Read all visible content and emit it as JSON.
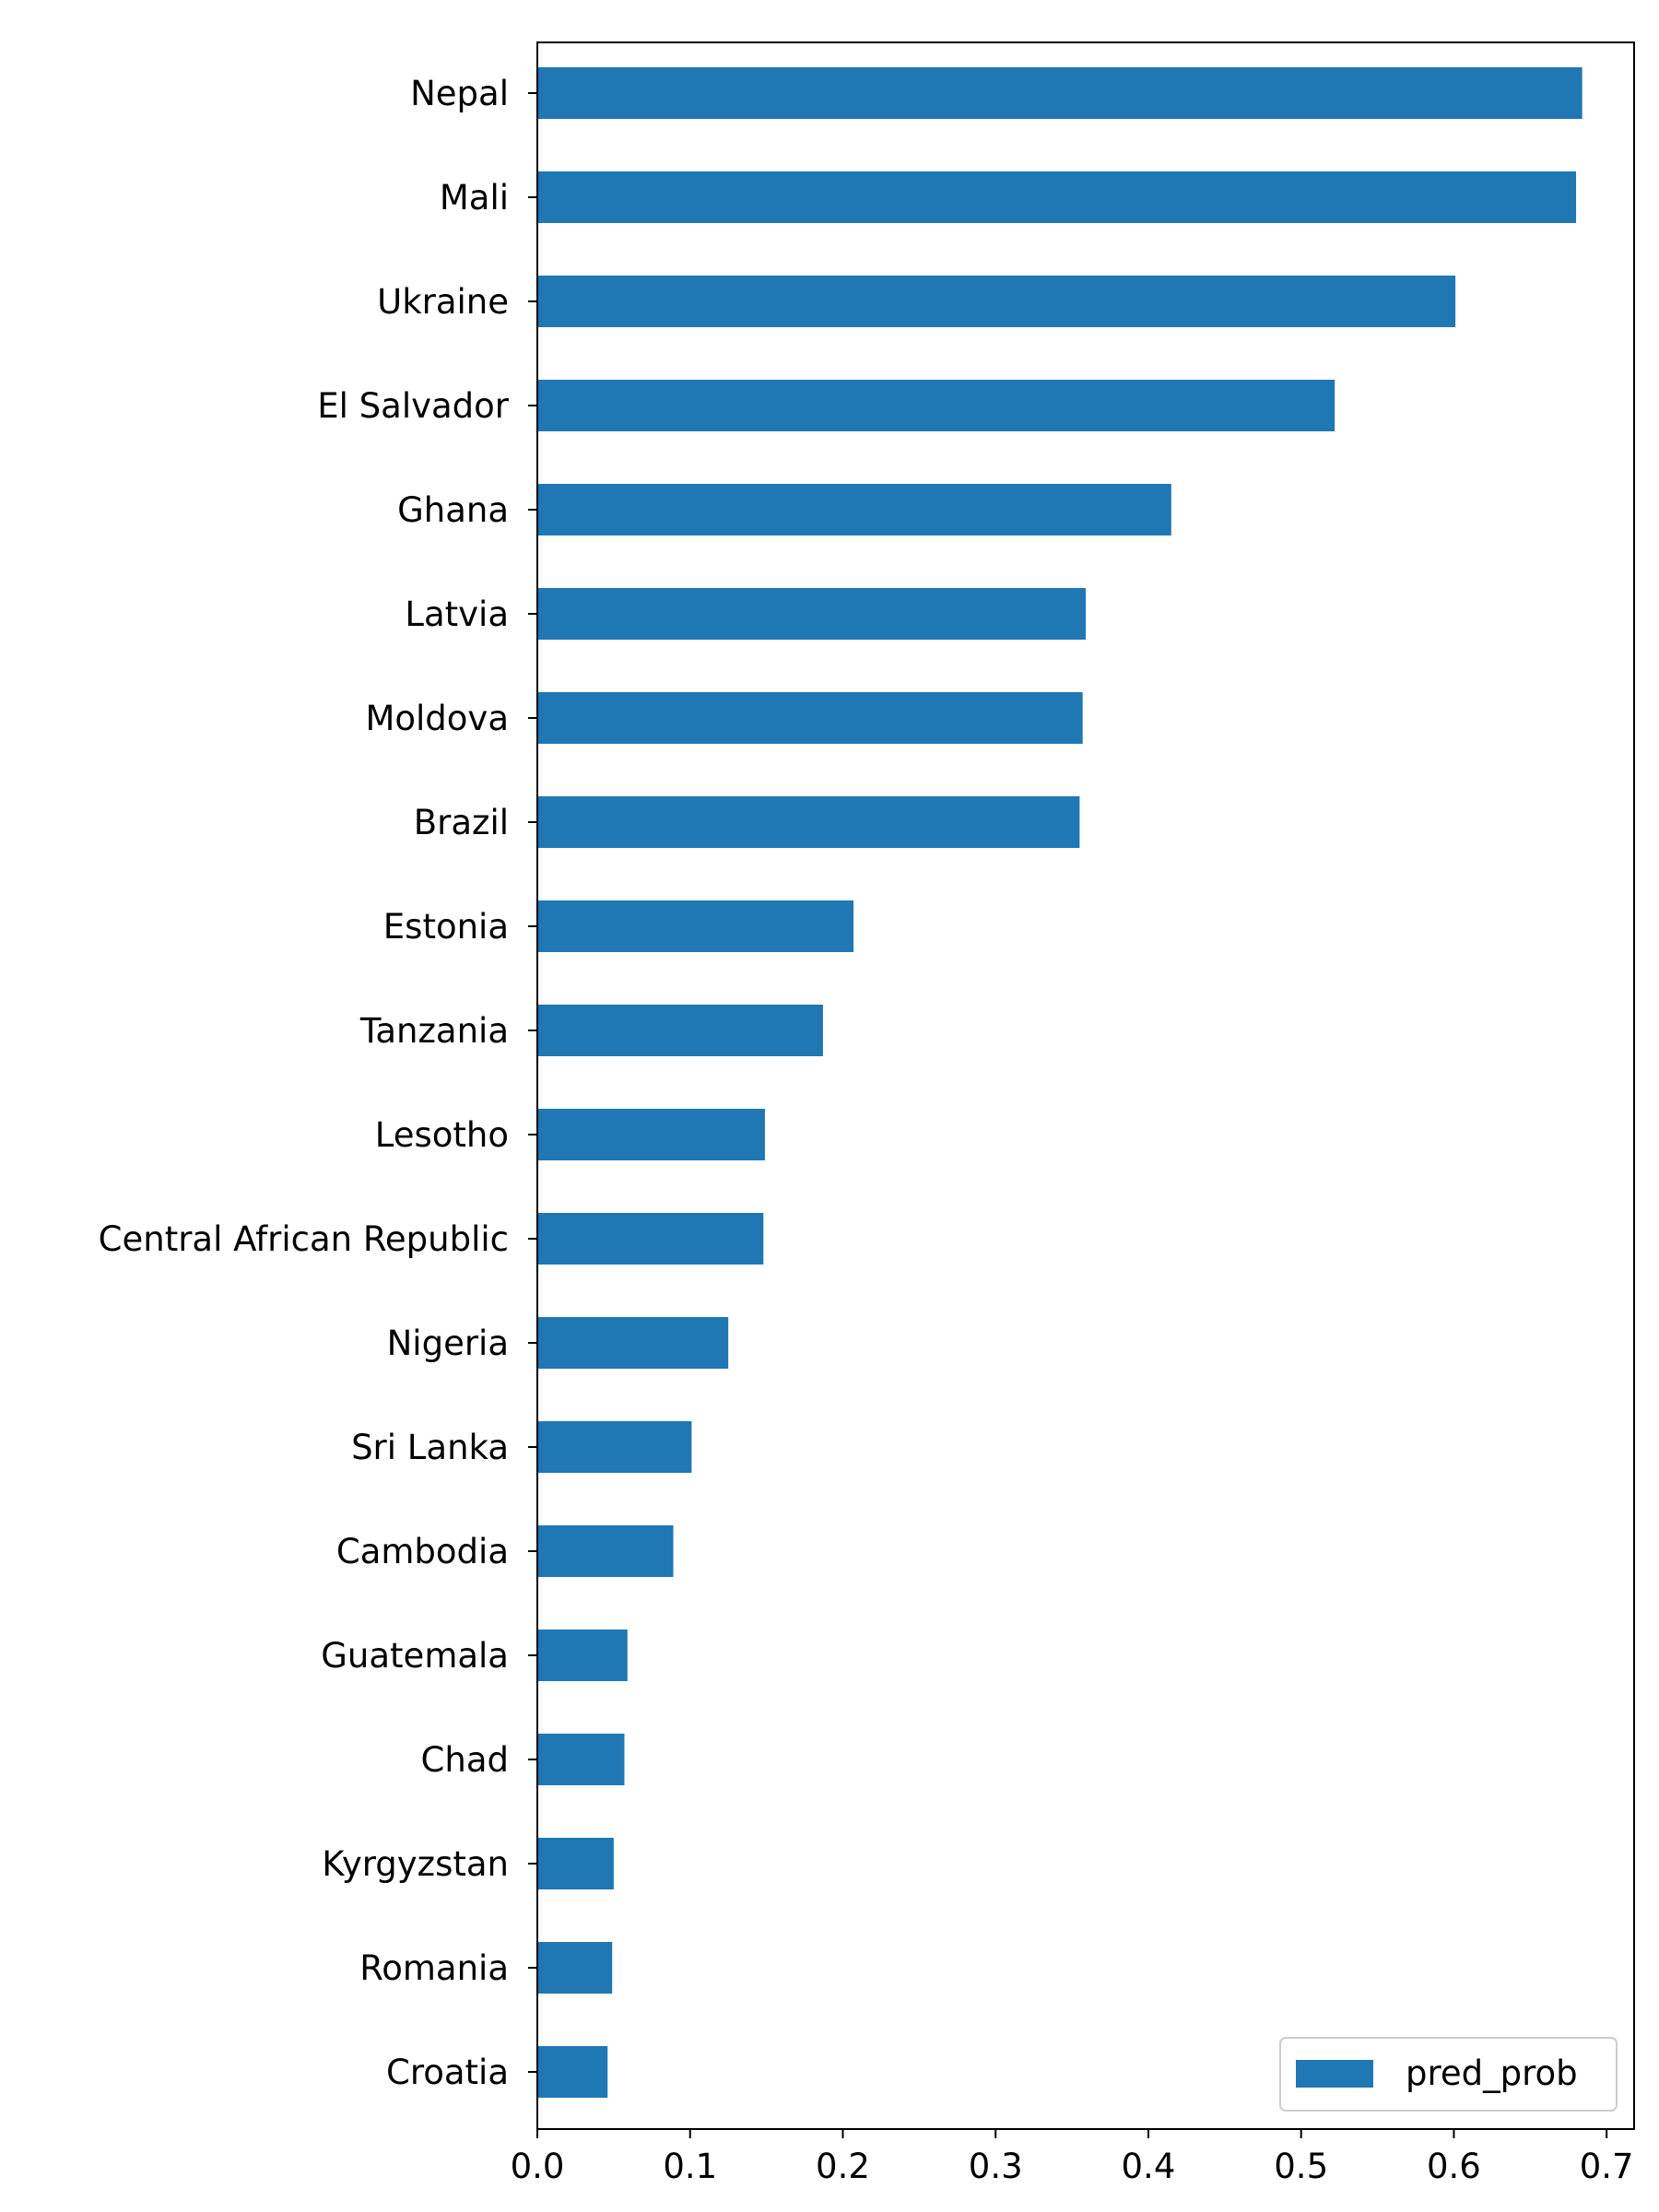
{
  "chart_data": {
    "type": "bar",
    "orientation": "horizontal",
    "categories": [
      "Nepal",
      "Mali",
      "Ukraine",
      "El Salvador",
      "Ghana",
      "Latvia",
      "Moldova",
      "Brazil",
      "Estonia",
      "Tanzania",
      "Lesotho",
      "Central African Republic",
      "Nigeria",
      "Sri Lanka",
      "Cambodia",
      "Guatemala",
      "Chad",
      "Kyrgyzstan",
      "Romania",
      "Croatia"
    ],
    "series": [
      {
        "name": "pred_prob",
        "color": "#1f77b4",
        "values": [
          0.684,
          0.68,
          0.601,
          0.522,
          0.415,
          0.359,
          0.357,
          0.355,
          0.207,
          0.187,
          0.149,
          0.148,
          0.125,
          0.101,
          0.089,
          0.059,
          0.057,
          0.05,
          0.049,
          0.046
        ]
      }
    ],
    "xlim": [
      0.0,
      0.718
    ],
    "xticks": [
      0.0,
      0.1,
      0.2,
      0.3,
      0.4,
      0.5,
      0.6,
      0.7
    ],
    "xtick_labels": [
      "0.0",
      "0.1",
      "0.2",
      "0.3",
      "0.4",
      "0.5",
      "0.6",
      "0.7"
    ],
    "title": "",
    "xlabel": "",
    "ylabel": "",
    "grid": false,
    "legend": {
      "position": "lower-right",
      "entries": [
        "pred_prob"
      ]
    }
  }
}
